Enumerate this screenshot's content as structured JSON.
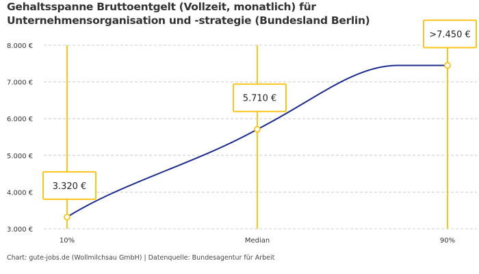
{
  "chart_data": {
    "type": "line",
    "title": "Gehaltsspanne Bruttoentgelt (Vollzeit, monatlich) für Unternehmensorganisation und -strategie (Bundesland Berlin)",
    "categories": [
      "10%",
      "Median",
      "90%"
    ],
    "values": [
      3320,
      5710,
      7450
    ],
    "data_labels": [
      "3.320 €",
      "5.710 €",
      ">7.450 €"
    ],
    "ylim": [
      3000,
      8000
    ],
    "yticks": [
      3000,
      4000,
      5000,
      6000,
      7000,
      8000
    ],
    "ytick_labels": [
      "3.000 €",
      "4.000 €",
      "5.000 €",
      "6.000 €",
      "7.000 €",
      "8.000 €"
    ],
    "grid": true,
    "colors": {
      "line": "#1b2a8c",
      "marker": "#fcc419",
      "grid": "#cccccc"
    }
  },
  "footer": "Chart: gute-jobs.de (Wollmilchsau GmbH) | Datenquelle: Bundesagentur für Arbeit"
}
